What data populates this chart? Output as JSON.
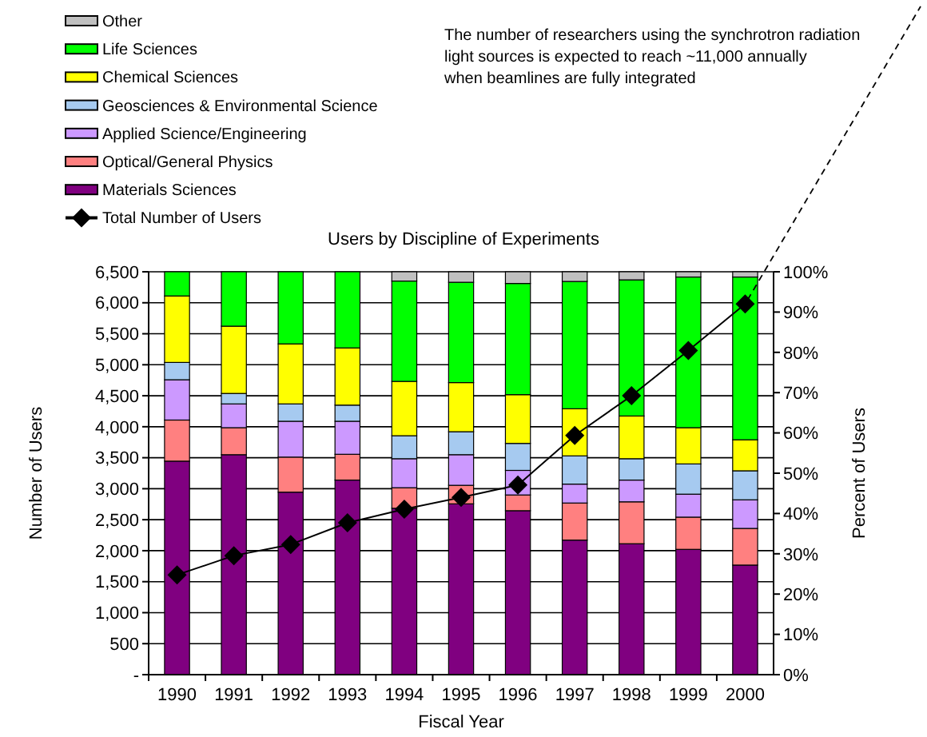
{
  "chart_data": {
    "type": "bar",
    "stacked": true,
    "title": "Users by Discipline of Experiments",
    "xlabel": "Fiscal Year",
    "ylabel": "Number of Users",
    "y2label": "Percent of Users",
    "annotations": [
      "The number of researchers using the synchrotron radiation\nlight sources is expected to reach ~11,000 annually\nwhen beamlines are fully integrated"
    ],
    "categories": [
      "1990",
      "1991",
      "1992",
      "1993",
      "1994",
      "1995",
      "1996",
      "1997",
      "1998",
      "1999",
      "2000"
    ],
    "series": [
      {
        "name": "Materials Sciences",
        "color": "#800080",
        "axis": "y2",
        "values": [
          53.0,
          54.6,
          45.3,
          48.3,
          41.3,
          42.4,
          40.7,
          33.4,
          32.5,
          31.1,
          27.2
        ]
      },
      {
        "name": "Optical/General Physics",
        "color": "#ff8080",
        "axis": "y2",
        "values": [
          10.2,
          6.7,
          8.7,
          6.4,
          5.1,
          4.6,
          3.9,
          9.2,
          10.4,
          8.0,
          9.1
        ]
      },
      {
        "name": "Applied Science/Engineering",
        "color": "#cc99ff",
        "axis": "y2",
        "values": [
          10.0,
          5.9,
          8.9,
          8.2,
          7.2,
          7.6,
          6.1,
          4.7,
          5.4,
          5.7,
          7.1
        ]
      },
      {
        "name": "Geosciences & Environmental Science",
        "color": "#a6caf0",
        "axis": "y2",
        "values": [
          4.3,
          2.6,
          4.3,
          4.0,
          5.7,
          5.7,
          6.7,
          7.0,
          5.3,
          7.5,
          7.2
        ]
      },
      {
        "name": "Chemical Sciences",
        "color": "#ffff00",
        "axis": "y2",
        "values": [
          16.5,
          16.7,
          14.9,
          14.2,
          13.5,
          12.2,
          12.1,
          11.7,
          10.6,
          9.0,
          7.7
        ]
      },
      {
        "name": "Life Sciences",
        "color": "#00ff00",
        "axis": "y2",
        "values": [
          6.0,
          13.5,
          17.9,
          18.9,
          24.9,
          24.9,
          27.6,
          31.6,
          33.8,
          37.4,
          40.4
        ]
      },
      {
        "name": "Other",
        "color": "#c0c0c0",
        "axis": "y2",
        "values": [
          0,
          0,
          0,
          0,
          2.3,
          2.6,
          2.9,
          2.4,
          2.0,
          1.3,
          1.3
        ]
      },
      {
        "name": "Total Number of Users",
        "type": "line",
        "color": "#000000",
        "axis": "y",
        "marker": "diamond",
        "line_style": "solid",
        "values": [
          1610,
          1920,
          2100,
          2450,
          2670,
          2860,
          3060,
          3860,
          4500,
          5230,
          5980
        ]
      }
    ],
    "ylim": [
      0,
      6500
    ],
    "yticks": [
      {
        "value": 0,
        "label": "-"
      },
      500,
      {
        "value": 1000,
        "label": "1,000"
      },
      {
        "value": 1500,
        "label": "1,500"
      },
      {
        "value": 2000,
        "label": "2,000"
      },
      {
        "value": 2500,
        "label": "2,500"
      },
      {
        "value": 3000,
        "label": "3,000"
      },
      {
        "value": 3500,
        "label": "3,500"
      },
      {
        "value": 4000,
        "label": "4,000"
      },
      {
        "value": 4500,
        "label": "4,500"
      },
      {
        "value": 5000,
        "label": "5,000"
      },
      {
        "value": 5500,
        "label": "5,500"
      },
      {
        "value": 6000,
        "label": "6,000"
      },
      {
        "value": 6500,
        "label": "6,500"
      }
    ],
    "y2lim": [
      0,
      100
    ],
    "y2ticks": [
      {
        "value": 0,
        "label": "0%"
      },
      {
        "value": 10,
        "label": "10%"
      },
      {
        "value": 20,
        "label": "20%"
      },
      {
        "value": 30,
        "label": "30%"
      },
      {
        "value": 40,
        "label": "40%"
      },
      {
        "value": 50,
        "label": "50%"
      },
      {
        "value": 60,
        "label": "60%"
      },
      {
        "value": 70,
        "label": "70%"
      },
      {
        "value": 80,
        "label": "80%"
      },
      {
        "value": 90,
        "label": "90%"
      },
      {
        "value": 100,
        "label": "100%"
      }
    ],
    "grid": "y",
    "legend": "top left"
  }
}
